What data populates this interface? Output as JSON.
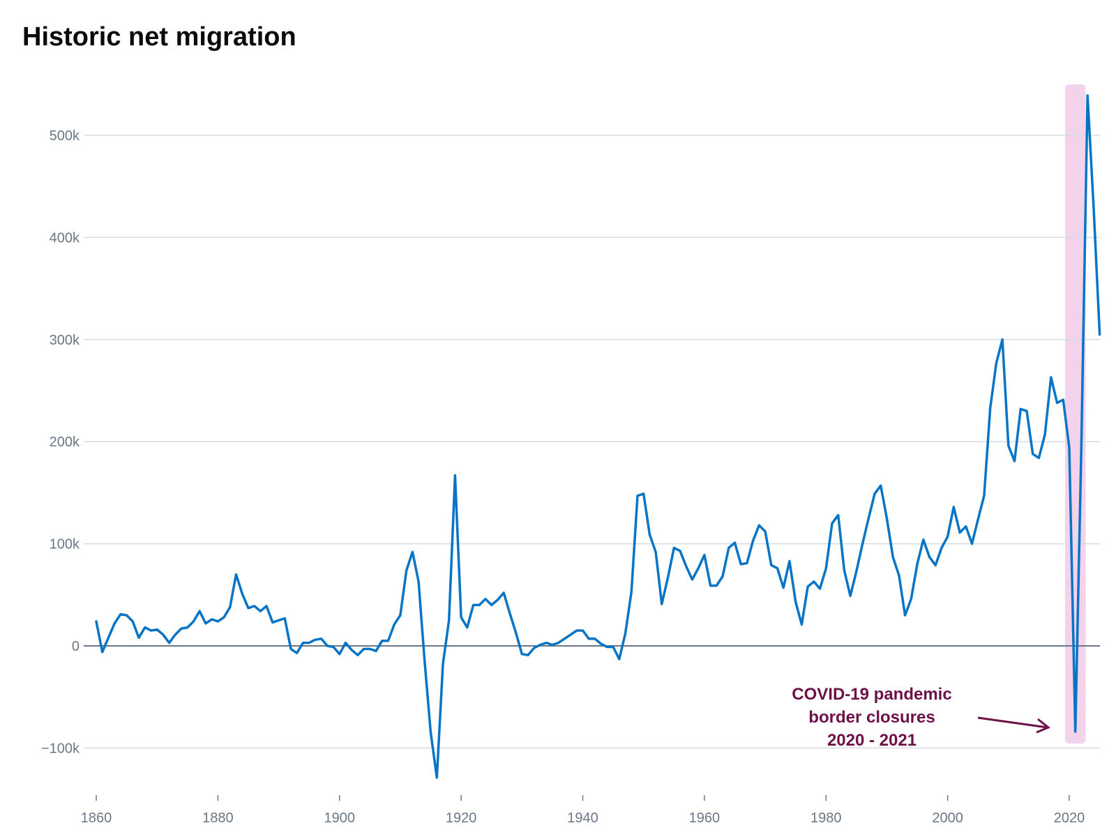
{
  "chart_data": {
    "type": "line",
    "title": "Historic net migration",
    "xlabel": "",
    "ylabel": "",
    "xlim": [
      1860,
      2025
    ],
    "ylim": [
      -130000,
      540000
    ],
    "grid": true,
    "x_ticks": [
      1860,
      1880,
      1900,
      1920,
      1940,
      1960,
      1980,
      2000,
      2020
    ],
    "x_tick_labels": [
      "1860",
      "1880",
      "1900",
      "1920",
      "1940",
      "1960",
      "1980",
      "2000",
      "2020"
    ],
    "y_ticks": [
      -100000,
      0,
      100000,
      200000,
      300000,
      400000,
      500000
    ],
    "y_tick_labels": [
      "−100k",
      "0",
      "100k",
      "200k",
      "300k",
      "400k",
      "500k"
    ],
    "colors": {
      "series": "#0874c6",
      "grid": "#d4dce3",
      "zero_line": "#6b7886",
      "highlight": "#f3d3ec",
      "annotation": "#6e1148"
    },
    "series": [
      {
        "x": [
          1860,
          1861,
          1862,
          1863,
          1864,
          1865,
          1866,
          1867,
          1868,
          1869,
          1870,
          1871,
          1872,
          1873,
          1874,
          1875,
          1876,
          1877,
          1878,
          1879,
          1880,
          1881,
          1882,
          1883,
          1884,
          1885,
          1886,
          1887,
          1888,
          1889,
          1890,
          1891,
          1892,
          1893,
          1894,
          1895,
          1896,
          1897,
          1898,
          1899,
          1900,
          1901,
          1902,
          1903,
          1904,
          1905,
          1906,
          1907,
          1908,
          1909,
          1910,
          1911,
          1912,
          1913,
          1914,
          1915,
          1916,
          1917,
          1918,
          1919,
          1920,
          1921,
          1922,
          1923,
          1924,
          1925,
          1926,
          1927,
          1928,
          1929,
          1930,
          1931,
          1932,
          1933,
          1934,
          1935,
          1936,
          1937,
          1938,
          1939,
          1940,
          1941,
          1942,
          1943,
          1944,
          1945,
          1946,
          1947,
          1948,
          1949,
          1950,
          1951,
          1952,
          1953,
          1954,
          1955,
          1956,
          1957,
          1958,
          1959,
          1960,
          1961,
          1962,
          1963,
          1964,
          1965,
          1966,
          1967,
          1968,
          1969,
          1970,
          1971,
          1972,
          1973,
          1974,
          1975,
          1976,
          1977,
          1978,
          1979,
          1980,
          1981,
          1982,
          1983,
          1984,
          1985,
          1986,
          1987,
          1988,
          1989,
          1990,
          1991,
          1992,
          1993,
          1994,
          1995,
          1996,
          1997,
          1998,
          1999,
          2000,
          2001,
          2002,
          2003,
          2004,
          2005,
          2006,
          2007,
          2008,
          2009,
          2010,
          2011,
          2012,
          2013,
          2014,
          2015,
          2016,
          2017,
          2018,
          2019,
          2020,
          2021,
          2022,
          2023,
          2024,
          2025
        ],
        "y": [
          24000,
          -6000,
          8000,
          22000,
          31000,
          30000,
          24000,
          8000,
          18000,
          15000,
          16000,
          11000,
          3000,
          11000,
          17000,
          18000,
          24000,
          34000,
          22000,
          26000,
          24000,
          28000,
          38000,
          70000,
          51000,
          37000,
          39000,
          34000,
          39000,
          23000,
          25000,
          27000,
          -3000,
          -7000,
          3000,
          3000,
          6000,
          7000,
          0,
          -1000,
          -8000,
          3000,
          -4000,
          -9000,
          -3000,
          -3000,
          -5000,
          5000,
          5000,
          21000,
          30000,
          74000,
          92000,
          63000,
          -15000,
          -85000,
          -129000,
          -18000,
          25000,
          167000,
          28000,
          18000,
          40000,
          40000,
          46000,
          40000,
          45000,
          52000,
          32000,
          13000,
          -8000,
          -9000,
          -2000,
          1000,
          3000,
          1000,
          3000,
          7000,
          11000,
          15000,
          15000,
          7000,
          7000,
          2000,
          -1000,
          -1000,
          -13000,
          12000,
          53000,
          147000,
          149000,
          109000,
          92000,
          41000,
          67000,
          96000,
          93000,
          78000,
          65000,
          76000,
          89000,
          59000,
          59000,
          68000,
          96000,
          101000,
          80000,
          81000,
          103000,
          118000,
          112000,
          79000,
          76000,
          57000,
          83000,
          43000,
          21000,
          58000,
          63000,
          56000,
          76000,
          120000,
          128000,
          74000,
          49000,
          73000,
          100000,
          125000,
          149000,
          157000,
          125000,
          87000,
          69000,
          30000,
          46000,
          80000,
          104000,
          87000,
          79000,
          96000,
          107000,
          136000,
          111000,
          117000,
          100000,
          124000,
          147000,
          233000,
          277000,
          300000,
          196000,
          181000,
          232000,
          230000,
          188000,
          184000,
          207000,
          263000,
          238000,
          241000,
          194000,
          -84000,
          198000,
          539000,
          430000,
          305000
        ]
      }
    ],
    "annotation": {
      "lines": [
        "COVID-19 pandemic",
        "border closures",
        "2020 - 2021"
      ],
      "highlight_x": [
        2020,
        2022
      ]
    }
  }
}
